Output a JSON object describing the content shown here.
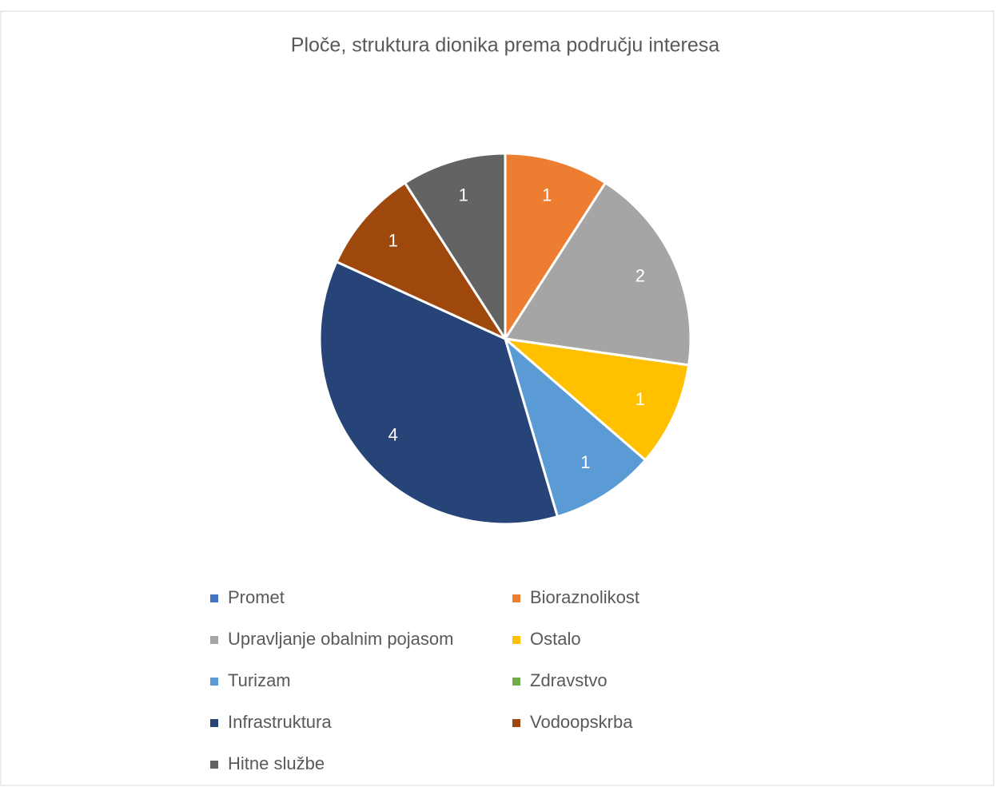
{
  "chart_data": {
    "type": "pie",
    "title": "Ploče, struktura dionika prema području interesa",
    "categories": [
      "Promet",
      "Bioraznolikost",
      "Upravljanje obalnim pojasom",
      "Ostalo",
      "Turizam",
      "Zdravstvo",
      "Infrastruktura",
      "Vodoopskrba",
      "Hitne službe"
    ],
    "values": [
      0,
      1,
      2,
      1,
      1,
      0,
      4,
      1,
      1
    ],
    "colors": [
      "#4472c4",
      "#ed7d31",
      "#a5a5a5",
      "#ffc000",
      "#5b9bd5",
      "#70ad47",
      "#264478",
      "#9e480e",
      "#636363"
    ],
    "legend": "bottom"
  }
}
